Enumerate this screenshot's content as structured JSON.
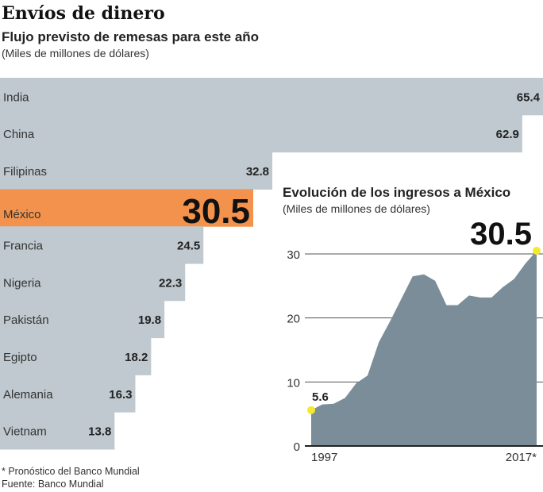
{
  "header": {
    "title": "Envíos de dinero",
    "subtitle": "Flujo previsto de remesas para este año",
    "unit": "(Miles de millones de dólares)"
  },
  "chart_data": [
    {
      "type": "bar",
      "orientation": "horizontal",
      "title": "Flujo previsto de remesas para este año",
      "subtitle": "(Miles de millones de dólares)",
      "categories": [
        "India",
        "China",
        "Filipinas",
        "México",
        "Francia",
        "Nigeria",
        "Pakistán",
        "Egipto",
        "Alemania",
        "Vietnam"
      ],
      "values": [
        65.4,
        62.9,
        32.8,
        30.5,
        24.5,
        22.3,
        19.8,
        18.2,
        16.3,
        13.8
      ],
      "value_labels": [
        "65.4",
        "62.9",
        "32.8",
        "30.5",
        "24.5",
        "22.3",
        "19.8",
        "18.2",
        "16.3",
        "13.8"
      ],
      "highlight": "México",
      "colors": {
        "bar": "#bfc9cf",
        "highlight": "#f3924c"
      },
      "grid": false
    },
    {
      "type": "area",
      "title": "Evolución de los ingresos a México",
      "subtitle": "(Miles de millones de dólares)",
      "x": [
        1997,
        1998,
        1999,
        2000,
        2001,
        2002,
        2003,
        2004,
        2005,
        2006,
        2007,
        2008,
        2009,
        2010,
        2011,
        2012,
        2013,
        2014,
        2015,
        2016,
        2017
      ],
      "y": [
        5.6,
        6.5,
        6.6,
        7.5,
        9.8,
        11,
        16.2,
        19.5,
        23,
        26.5,
        26.8,
        25.8,
        22,
        22,
        23.5,
        23.2,
        23.2,
        24.8,
        26.1,
        28.5,
        30.5
      ],
      "x_tick_labels": [
        "1997",
        "2017*"
      ],
      "y_ticks": [
        0,
        10,
        20,
        30
      ],
      "y_tick_labels": [
        "0",
        "10",
        "20",
        "30"
      ],
      "ylim": [
        0,
        30.5
      ],
      "annotations": {
        "start": "5.6",
        "end": "30.5"
      },
      "colors": {
        "area": "#7a8d99",
        "marker": "#f2ea2a"
      },
      "grid": true
    }
  ],
  "footer": {
    "note": "* Pronóstico del Banco Mundial",
    "source": "Fuente: Banco Mundial"
  }
}
